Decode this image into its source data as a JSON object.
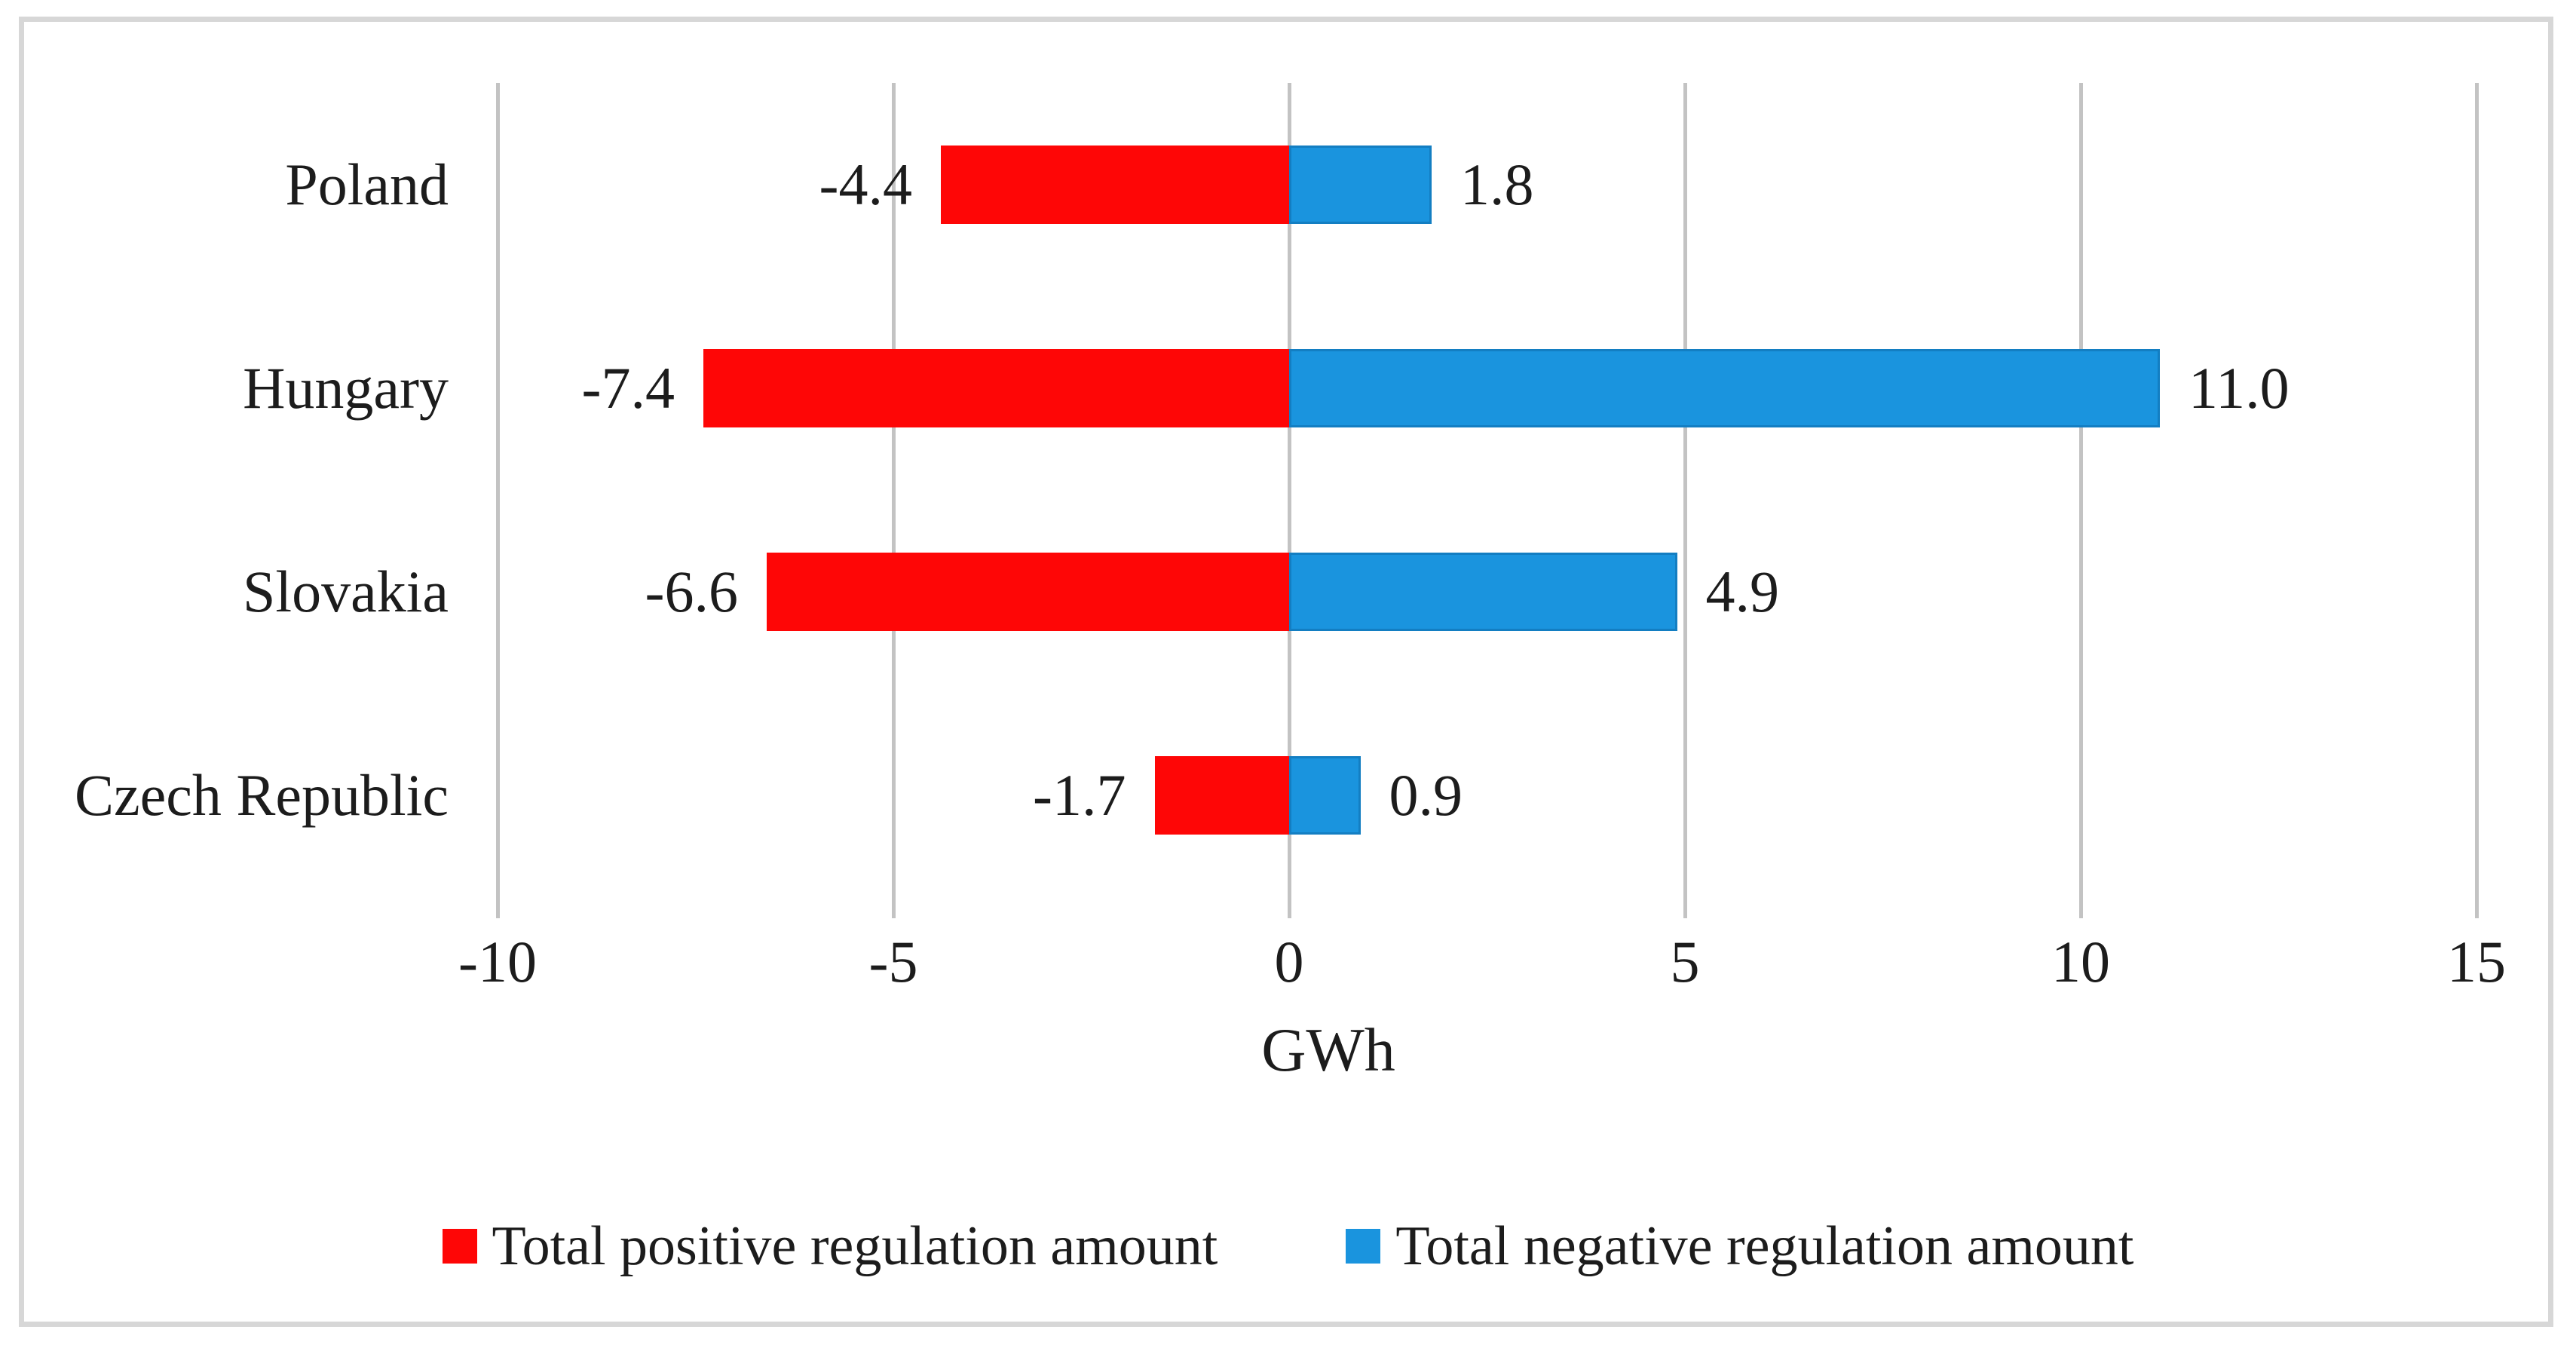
{
  "chart_data": {
    "type": "bar",
    "orientation": "horizontal",
    "categories": [
      "Poland",
      "Hungary",
      "Slovakia",
      "Czech Republic"
    ],
    "series": [
      {
        "name": "Total positive regulation amount",
        "color": "#fe0606",
        "values": [
          -4.4,
          -7.4,
          -6.6,
          -1.7
        ],
        "labels": [
          "-4.4",
          "-7.4",
          "-6.6",
          "-1.7"
        ]
      },
      {
        "name": "Total negative regulation amount",
        "color": "#1a94de",
        "values": [
          1.8,
          11.0,
          4.9,
          0.9
        ],
        "labels": [
          "1.8",
          "11.0",
          "4.9",
          "0.9"
        ]
      }
    ],
    "title": "",
    "xlabel": "GWh",
    "ylabel": "",
    "xlim": [
      -10,
      15
    ],
    "x_ticks": [
      -10,
      -5,
      0,
      5,
      10,
      15
    ],
    "x_tick_labels": [
      "-10",
      "-5",
      "0",
      "5",
      "10",
      "15"
    ],
    "grid": "vertical-gridlines-on",
    "gridline_color": "#c3c3c3",
    "frame_color": "#d7d7d7",
    "legend_position": "bottom"
  }
}
